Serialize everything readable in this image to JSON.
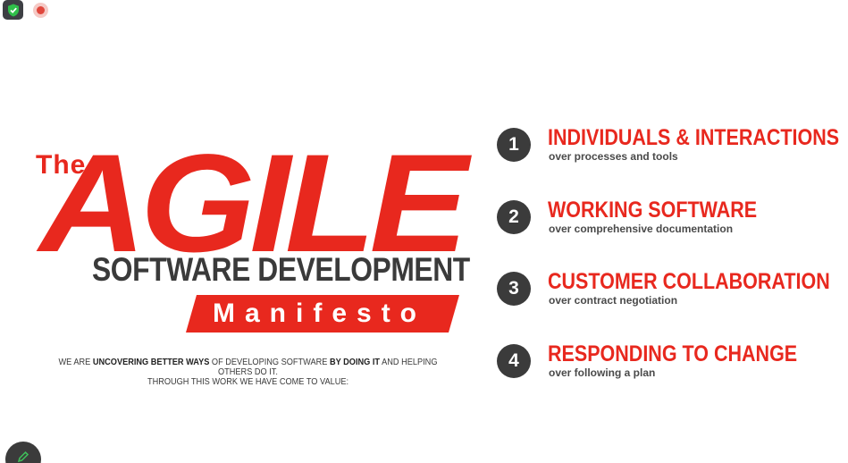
{
  "toolbar": {
    "shield_icon": "shield-check-icon",
    "record_icon": "record-indicator-icon"
  },
  "slide": {
    "the_label": "The",
    "agile_label": "AGILE",
    "subtitle": "SOFTWARE DEVELOPMENT",
    "manifesto": "Manifesto",
    "intro": {
      "p1": "WE ARE ",
      "b1": "UNCOVERING BETTER WAYS",
      "p2": " OF DEVELOPING SOFTWARE ",
      "b2": "BY DOING IT",
      "p3": " AND HELPING OTHERS DO IT.",
      "line2": "THROUGH THIS WORK WE HAVE COME TO VALUE:"
    },
    "values": [
      {
        "number": "1",
        "heading": "INDIVIDUALS & INTERACTIONS",
        "sub": "over processes and tools"
      },
      {
        "number": "2",
        "heading": "WORKING SOFTWARE",
        "sub": "over comprehensive documentation"
      },
      {
        "number": "3",
        "heading": "CUSTOMER COLLABORATION",
        "sub": "over contract negotiation"
      },
      {
        "number": "4",
        "heading": "RESPONDING TO CHANGE",
        "sub": "over following a plan"
      }
    ]
  },
  "colors": {
    "accent": "#e8281e",
    "dark": "#3b3b3b"
  },
  "fab": {
    "icon": "pencil-icon"
  }
}
